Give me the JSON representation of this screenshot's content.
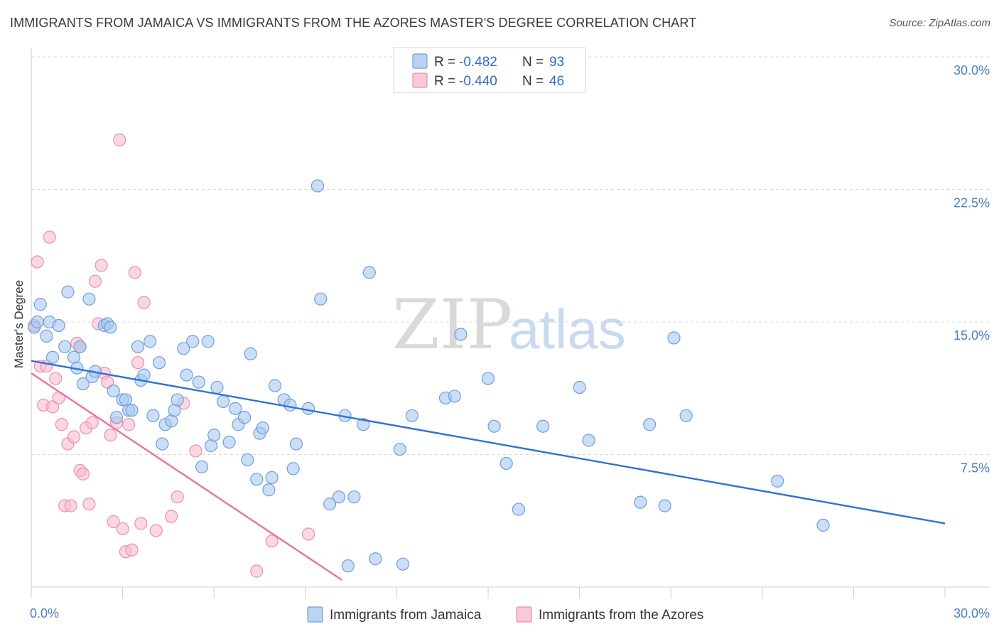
{
  "header": {
    "title": "IMMIGRANTS FROM JAMAICA VS IMMIGRANTS FROM THE AZORES MASTER'S DEGREE CORRELATION CHART",
    "source": "Source: ZipAtlas.com"
  },
  "watermark": {
    "zip": "ZIP",
    "atlas": "atlas"
  },
  "colors": {
    "jamaica_fill": "#a9c8f0",
    "jamaica_stroke": "#6e9fdc",
    "jamaica_line": "#2f72d4",
    "azores_fill": "#f6bcd0",
    "azores_stroke": "#ea8fb0",
    "azores_line": "#e8739c",
    "grid": "#d8d8d8",
    "tick_text": "#4a7fc7"
  },
  "legend": {
    "rows": [
      {
        "r_label": "R = ",
        "r_value": "-0.482",
        "n_label": "N = ",
        "n_value": "93"
      },
      {
        "r_label": "R = ",
        "r_value": "-0.440",
        "n_label": "N = ",
        "n_value": "46"
      }
    ]
  },
  "chart_data": {
    "type": "scatter",
    "title": "IMMIGRANTS FROM JAMAICA VS IMMIGRANTS FROM THE AZORES MASTER'S DEGREE CORRELATION CHART",
    "xlabel": "",
    "ylabel": "Master's Degree",
    "xlim": [
      0,
      30
    ],
    "ylim": [
      0,
      30
    ],
    "x_tick_labels": [
      "0.0%",
      "30.0%"
    ],
    "y_ticks": [
      7.5,
      15.0,
      22.5,
      30.0
    ],
    "y_tick_labels": [
      "7.5%",
      "15.0%",
      "22.5%",
      "30.0%"
    ],
    "grid": true,
    "legend_position": "top-center",
    "series": [
      {
        "name": "Immigrants from Jamaica",
        "trendline": {
          "x": [
            0,
            30
          ],
          "y": [
            12.8,
            3.6
          ]
        },
        "points": [
          [
            0.1,
            14.7
          ],
          [
            0.3,
            16.0
          ],
          [
            0.5,
            14.2
          ],
          [
            0.6,
            15.0
          ],
          [
            0.7,
            13.0
          ],
          [
            0.9,
            14.8
          ],
          [
            1.1,
            13.6
          ],
          [
            1.2,
            16.7
          ],
          [
            1.4,
            13.0
          ],
          [
            1.5,
            12.4
          ],
          [
            1.6,
            13.6
          ],
          [
            1.7,
            11.5
          ],
          [
            1.9,
            16.3
          ],
          [
            2.0,
            11.9
          ],
          [
            2.1,
            12.2
          ],
          [
            2.4,
            14.8
          ],
          [
            2.5,
            14.9
          ],
          [
            2.6,
            14.7
          ],
          [
            2.7,
            11.1
          ],
          [
            2.8,
            9.6
          ],
          [
            3.0,
            10.6
          ],
          [
            3.1,
            10.6
          ],
          [
            3.2,
            10.0
          ],
          [
            3.3,
            10.0
          ],
          [
            3.5,
            13.6
          ],
          [
            3.6,
            11.7
          ],
          [
            3.7,
            12.0
          ],
          [
            3.9,
            13.9
          ],
          [
            4.0,
            9.7
          ],
          [
            4.2,
            12.7
          ],
          [
            4.3,
            8.1
          ],
          [
            4.4,
            9.2
          ],
          [
            4.6,
            9.4
          ],
          [
            4.7,
            10.0
          ],
          [
            4.8,
            10.6
          ],
          [
            5.0,
            13.5
          ],
          [
            5.1,
            12.0
          ],
          [
            5.3,
            13.9
          ],
          [
            5.5,
            11.6
          ],
          [
            5.6,
            6.8
          ],
          [
            5.8,
            13.9
          ],
          [
            5.9,
            8.0
          ],
          [
            6.0,
            8.6
          ],
          [
            6.1,
            11.3
          ],
          [
            6.3,
            10.5
          ],
          [
            6.5,
            8.2
          ],
          [
            6.7,
            10.1
          ],
          [
            6.8,
            9.2
          ],
          [
            7.0,
            9.6
          ],
          [
            7.1,
            7.2
          ],
          [
            7.2,
            13.2
          ],
          [
            7.4,
            6.1
          ],
          [
            7.5,
            8.7
          ],
          [
            7.6,
            9.0
          ],
          [
            7.8,
            5.5
          ],
          [
            7.9,
            6.2
          ],
          [
            8.0,
            11.4
          ],
          [
            8.3,
            10.6
          ],
          [
            8.5,
            10.3
          ],
          [
            8.6,
            6.7
          ],
          [
            8.7,
            8.1
          ],
          [
            9.1,
            10.1
          ],
          [
            9.4,
            22.7
          ],
          [
            9.5,
            16.3
          ],
          [
            9.8,
            4.7
          ],
          [
            10.1,
            5.1
          ],
          [
            10.3,
            9.7
          ],
          [
            10.4,
            1.2
          ],
          [
            10.6,
            5.1
          ],
          [
            10.9,
            9.2
          ],
          [
            11.1,
            17.8
          ],
          [
            11.3,
            1.6
          ],
          [
            12.1,
            7.8
          ],
          [
            12.2,
            1.3
          ],
          [
            12.5,
            9.7
          ],
          [
            13.6,
            10.7
          ],
          [
            13.9,
            10.8
          ],
          [
            14.1,
            14.3
          ],
          [
            15.0,
            11.8
          ],
          [
            15.2,
            9.1
          ],
          [
            15.6,
            7.0
          ],
          [
            16.0,
            4.4
          ],
          [
            16.8,
            9.1
          ],
          [
            18.0,
            11.3
          ],
          [
            18.3,
            8.3
          ],
          [
            20.0,
            4.8
          ],
          [
            20.3,
            9.2
          ],
          [
            20.8,
            4.6
          ],
          [
            21.1,
            14.1
          ],
          [
            21.5,
            9.7
          ],
          [
            24.5,
            6.0
          ],
          [
            26.0,
            3.5
          ],
          [
            0.2,
            15.0
          ]
        ]
      },
      {
        "name": "Immigrants from the Azores",
        "trendline": {
          "x": [
            0,
            10.2
          ],
          "y": [
            12.1,
            0.4
          ]
        },
        "points": [
          [
            0.1,
            14.8
          ],
          [
            0.2,
            18.4
          ],
          [
            0.3,
            12.5
          ],
          [
            0.4,
            10.3
          ],
          [
            0.5,
            12.5
          ],
          [
            0.6,
            19.8
          ],
          [
            0.7,
            10.2
          ],
          [
            0.8,
            11.8
          ],
          [
            0.9,
            10.7
          ],
          [
            1.0,
            9.2
          ],
          [
            1.1,
            4.6
          ],
          [
            1.2,
            8.1
          ],
          [
            1.3,
            4.6
          ],
          [
            1.4,
            8.5
          ],
          [
            1.5,
            13.8
          ],
          [
            1.6,
            6.6
          ],
          [
            1.7,
            6.4
          ],
          [
            1.8,
            9.0
          ],
          [
            1.9,
            4.7
          ],
          [
            2.0,
            9.3
          ],
          [
            2.1,
            17.3
          ],
          [
            2.2,
            14.9
          ],
          [
            2.3,
            18.2
          ],
          [
            2.4,
            12.1
          ],
          [
            2.5,
            11.6
          ],
          [
            2.6,
            8.6
          ],
          [
            2.7,
            3.7
          ],
          [
            2.8,
            9.3
          ],
          [
            2.9,
            25.3
          ],
          [
            3.0,
            3.3
          ],
          [
            3.1,
            2.0
          ],
          [
            3.2,
            9.2
          ],
          [
            3.3,
            2.1
          ],
          [
            3.4,
            17.8
          ],
          [
            3.5,
            12.7
          ],
          [
            3.6,
            3.6
          ],
          [
            3.7,
            16.1
          ],
          [
            4.1,
            3.2
          ],
          [
            4.6,
            4.0
          ],
          [
            4.8,
            5.1
          ],
          [
            5.0,
            10.4
          ],
          [
            5.4,
            7.7
          ],
          [
            7.4,
            0.9
          ],
          [
            7.9,
            2.6
          ],
          [
            9.1,
            3.0
          ],
          [
            1.6,
            13.6
          ]
        ]
      }
    ]
  },
  "bottom_legend": {
    "items": [
      {
        "label": "Immigrants from Jamaica"
      },
      {
        "label": "Immigrants from the Azores"
      }
    ]
  }
}
